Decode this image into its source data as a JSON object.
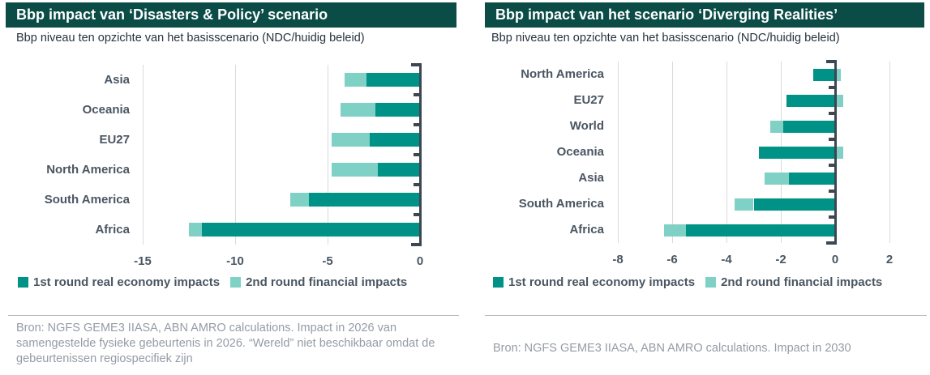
{
  "colors": {
    "title_bar_bg": "#0c4c47",
    "title_text": "#ffffff",
    "first_round": "#009286",
    "second_round": "#7fd1c5",
    "axis": "#3d4752",
    "label_text": "#4a5662",
    "source_text": "#959ba5"
  },
  "panels": [
    {
      "title": "Bbp impact van ‘Disasters & Policy’ scenario",
      "subtitle": "Bbp niveau ten opzichte van het basisscenario (NDC/huidig beleid)",
      "source": "Bron: NGFS GEME3 IIASA, ABN AMRO calculations. Impact in 2026 van samengestelde fysieke gebeurtenis in 2026. “Wereld”  niet beschikbaar omdat de gebeurtenissen regiospecifiek zijn"
    },
    {
      "title": "Bbp impact van het scenario ‘Diverging Realities’",
      "subtitle": "Bbp niveau ten opzichte van het basisscenario (NDC/huidig beleid)",
      "source": "Bron: NGFS GEME3 IIASA, ABN AMRO calculations. Impact in 2030"
    }
  ],
  "chart_data": [
    {
      "type": "bar",
      "orientation": "horizontal",
      "title": "Bbp impact van ‘Disasters & Policy’ scenario",
      "subtitle": "Bbp niveau ten opzichte van het basisscenario (NDC/huidig beleid)",
      "categories": [
        "Asia",
        "Oceania",
        "EU27",
        "North America",
        "South America",
        "Africa"
      ],
      "series": [
        {
          "name": "1st round real economy impacts",
          "color": "#009286",
          "values": [
            -2.9,
            -2.4,
            -2.7,
            -2.3,
            -6.0,
            -11.8
          ]
        },
        {
          "name": "2nd round financial impacts",
          "color": "#7fd1c5",
          "values": [
            -1.2,
            -1.9,
            -2.1,
            -2.5,
            -1.0,
            -0.7
          ]
        }
      ],
      "stacked": true,
      "xticks": [
        -15,
        -10,
        -5,
        0
      ],
      "xlim": [
        -15,
        0.3
      ],
      "grid": true,
      "legend_position": "bottom"
    },
    {
      "type": "bar",
      "orientation": "horizontal",
      "title": "Bbp impact van het scenario ‘Diverging Realities’",
      "subtitle": "Bbp niveau ten opzichte van het basisscenario (NDC/huidig beleid)",
      "categories": [
        "North America",
        "EU27",
        "World",
        "Oceania",
        "Asia",
        "South America",
        "Africa"
      ],
      "series": [
        {
          "name": "1st round real economy impacts",
          "color": "#009286",
          "values": [
            -0.8,
            -1.8,
            -1.9,
            -2.8,
            -1.7,
            -3.0,
            -5.5
          ]
        },
        {
          "name": "2nd round financial impacts",
          "color": "#7fd1c5",
          "values": [
            0.2,
            0.3,
            -0.5,
            0.3,
            -0.9,
            -0.7,
            -0.8
          ]
        }
      ],
      "stacked": true,
      "xticks": [
        -8,
        -6,
        -4,
        -2,
        0,
        2
      ],
      "xlim": [
        -8.2,
        2.2
      ],
      "grid": true,
      "legend_position": "bottom"
    }
  ]
}
